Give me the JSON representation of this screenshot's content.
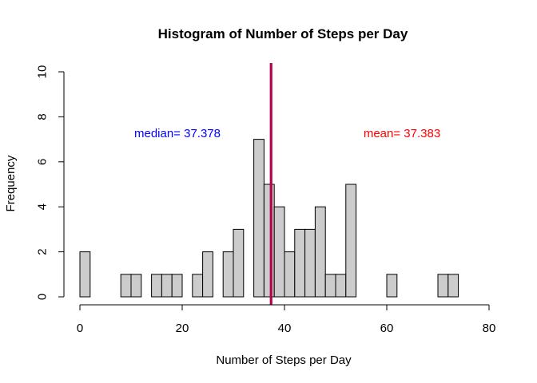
{
  "chart_data": {
    "type": "bar",
    "title": "Histogram of Number of Steps per Day",
    "xlabel": "Number of Steps per Day",
    "ylabel": "Frequency",
    "xlim": [
      0,
      80
    ],
    "ylim": [
      0,
      10
    ],
    "x_ticks": [
      0,
      20,
      40,
      60,
      80
    ],
    "y_ticks": [
      0,
      2,
      4,
      6,
      8,
      10
    ],
    "bin_width": 2,
    "bin_start": 0,
    "values": [
      2,
      0,
      0,
      0,
      1,
      1,
      0,
      1,
      1,
      1,
      0,
      1,
      2,
      0,
      2,
      3,
      0,
      7,
      5,
      4,
      2,
      3,
      3,
      4,
      1,
      1,
      5,
      0,
      0,
      0,
      1,
      0,
      0,
      0,
      0,
      1,
      1
    ],
    "bar_color": "#cccccc",
    "lines": [
      {
        "name": "median",
        "x": 37.378,
        "color": "#0000ff"
      },
      {
        "name": "mean",
        "x": 37.383,
        "color": "#ff0000"
      }
    ],
    "annotations": [
      {
        "text": "median= 37.378",
        "color": "#0000ff"
      },
      {
        "text": "mean= 37.383",
        "color": "#ff0000"
      }
    ]
  }
}
